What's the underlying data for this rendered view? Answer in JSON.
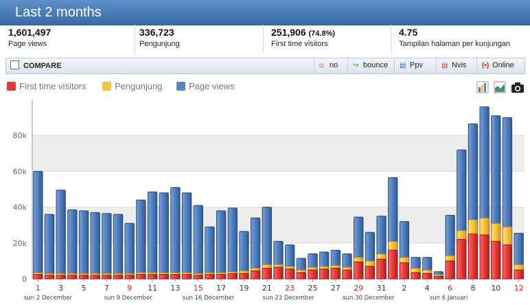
{
  "header": {
    "title": "Last 2 months"
  },
  "stats": [
    {
      "value": "1,601,497",
      "pct": "",
      "label": "Page views"
    },
    {
      "value": "336,723",
      "pct": "",
      "label": "Pengunjung"
    },
    {
      "value": "251,906",
      "pct": "(74.8%)",
      "label": "First time visitors"
    },
    {
      "value": "4.75",
      "pct": "",
      "label": "Tampilan halaman per kunjungan"
    }
  ],
  "toolbar": {
    "compare_label": "COMPARE",
    "items": [
      {
        "label": "no",
        "icon": "no-icon"
      },
      {
        "label": "bounce",
        "icon": "bounce-icon"
      },
      {
        "label": "Ppv",
        "icon": "ppv-chart-icon"
      },
      {
        "label": "Nvis",
        "icon": "nvis-chart-icon"
      },
      {
        "label": "Online",
        "icon": "online-signal-icon"
      }
    ]
  },
  "colors": {
    "first": "#e63a3a",
    "pengunjung": "#f6c442",
    "pageviews": "#5683c1",
    "accent": "#3b6aa5"
  },
  "chart_data": {
    "type": "bar",
    "legend": [
      "First time visitors",
      "Pengunjung",
      "Page views"
    ],
    "ylim": [
      0,
      100000
    ],
    "y_ticks": [
      "0",
      "20k",
      "40k",
      "60k",
      "80k"
    ],
    "y_tick_values": [
      0,
      20000,
      40000,
      60000,
      80000
    ],
    "x_tick_labels": [
      "1",
      "3",
      "5",
      "7",
      "9",
      "11",
      "13",
      "15",
      "17",
      "19",
      "21",
      "23",
      "25",
      "27",
      "29",
      "31",
      "2",
      "4",
      "6",
      "8",
      "10",
      "12"
    ],
    "x_tick_red": [
      true,
      false,
      false,
      false,
      true,
      false,
      false,
      true,
      false,
      false,
      false,
      true,
      false,
      false,
      true,
      false,
      false,
      false,
      true,
      false,
      false,
      true
    ],
    "week_labels": [
      "sun 2 December",
      "sun 9 December",
      "sun 16 December",
      "sun 23 December",
      "sun 30 December",
      "sun 6 Januari"
    ],
    "series": [
      {
        "name": "Page views",
        "values": [
          60000,
          36000,
          49500,
          38500,
          38000,
          37000,
          36500,
          36000,
          31000,
          44000,
          48500,
          48000,
          51000,
          48000,
          41000,
          29000,
          38000,
          39500,
          26500,
          34000,
          40000,
          21000,
          19000,
          11500,
          14000,
          15000,
          16000,
          14000,
          34500,
          26000,
          35000,
          56500,
          32000,
          12000,
          12000,
          4000,
          35500,
          72000,
          86500,
          96000,
          91000,
          90000,
          25500
        ]
      },
      {
        "name": "Pengunjung",
        "values": [
          3500,
          3000,
          3000,
          3000,
          3000,
          3000,
          3000,
          3000,
          3000,
          3500,
          3500,
          3500,
          3500,
          3500,
          3000,
          3500,
          3500,
          4000,
          4500,
          6000,
          8000,
          8000,
          7000,
          5000,
          6500,
          7000,
          7500,
          6500,
          12000,
          10000,
          14000,
          21000,
          12000,
          6000,
          5000,
          2500,
          13000,
          27000,
          33000,
          34000,
          31000,
          29000,
          8000
        ]
      },
      {
        "name": "First time visitors",
        "values": [
          2500,
          2000,
          2000,
          2000,
          2000,
          2000,
          2000,
          2000,
          2000,
          2500,
          2500,
          2500,
          2500,
          2500,
          2000,
          2500,
          2500,
          3000,
          3000,
          4500,
          6000,
          6500,
          5500,
          3500,
          5000,
          5500,
          6000,
          5000,
          9500,
          7000,
          11000,
          16000,
          9000,
          3500,
          3000,
          1500,
          10000,
          22000,
          25000,
          24500,
          21000,
          19000,
          5000
        ]
      }
    ]
  }
}
